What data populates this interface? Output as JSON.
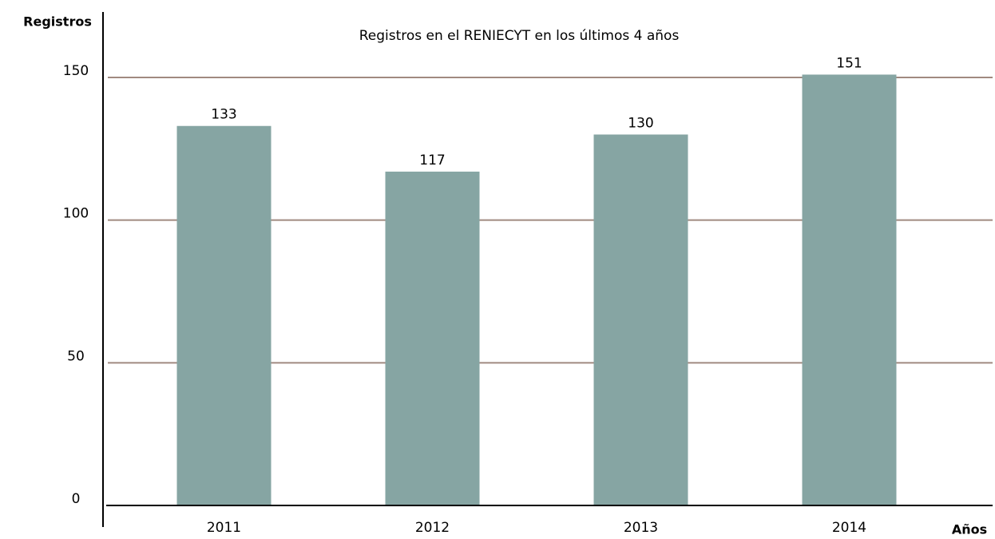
{
  "chart_data": {
    "type": "bar",
    "title": "Registros en el RENIECYT en los últimos 4 años",
    "y_label": "Registros",
    "x_label": "Años",
    "categories": [
      "2011",
      "2012",
      "2013",
      "2014"
    ],
    "values": [
      133,
      117,
      130,
      151
    ],
    "color": "#86a5a3",
    "ylim": [
      0,
      150
    ],
    "yticks": [
      0,
      50,
      100,
      150
    ],
    "grid": true,
    "grid_color": "#a08a80"
  }
}
